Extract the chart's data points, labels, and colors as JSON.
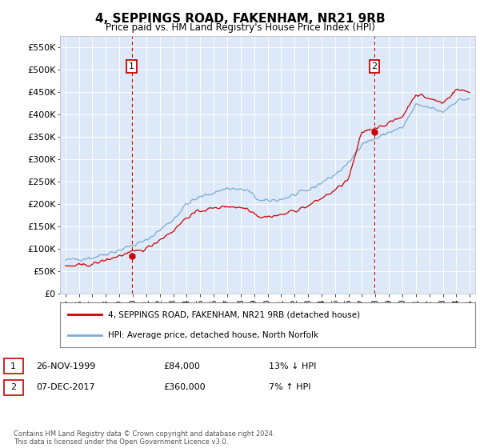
{
  "title": "4, SEPPINGS ROAD, FAKENHAM, NR21 9RB",
  "subtitle": "Price paid vs. HM Land Registry's House Price Index (HPI)",
  "title_fontsize": 11,
  "subtitle_fontsize": 9,
  "bg_color": "#dde8f8",
  "ylim": [
    0,
    575000
  ],
  "yticks": [
    0,
    50000,
    100000,
    150000,
    200000,
    250000,
    300000,
    350000,
    400000,
    450000,
    500000,
    550000
  ],
  "ytick_labels": [
    "£0",
    "£50K",
    "£100K",
    "£150K",
    "£200K",
    "£250K",
    "£300K",
    "£350K",
    "£400K",
    "£450K",
    "£500K",
    "£550K"
  ],
  "sale1_year": 1999.92,
  "sale1_price": 84000,
  "sale1_label": "1",
  "sale1_date": "26-NOV-1999",
  "sale1_pct": "13% ↓ HPI",
  "sale2_year": 2017.93,
  "sale2_price": 360000,
  "sale2_label": "2",
  "sale2_date": "07-DEC-2017",
  "sale2_pct": "7% ↑ HPI",
  "legend_label1": "4, SEPPINGS ROAD, FAKENHAM, NR21 9RB (detached house)",
  "legend_label2": "HPI: Average price, detached house, North Norfolk",
  "footer": "Contains HM Land Registry data © Crown copyright and database right 2024.\nThis data is licensed under the Open Government Licence v3.0.",
  "hpi_color": "#7aaad4",
  "price_color": "#cc0000",
  "vline_color": "#cc0000",
  "box_color": "#cc0000"
}
